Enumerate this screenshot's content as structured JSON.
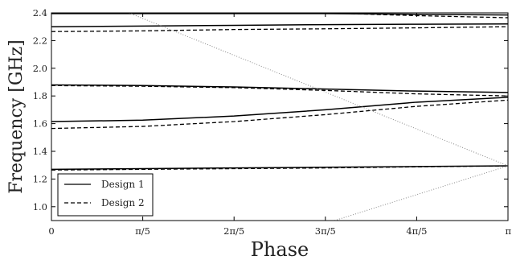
{
  "chart_data": {
    "type": "line",
    "title": "",
    "xlabel": "Phase",
    "ylabel": "Frequency [GHz]",
    "xlim": [
      0,
      1
    ],
    "ylim": [
      0.9,
      2.4
    ],
    "xticks": [
      {
        "value": 0,
        "label": "0"
      },
      {
        "value": 0.2,
        "label": "π/5"
      },
      {
        "value": 0.4,
        "label": "2π/5"
      },
      {
        "value": 0.6,
        "label": "3π/5"
      },
      {
        "value": 0.8,
        "label": "4π/5"
      },
      {
        "value": 1.0,
        "label": "π"
      }
    ],
    "yticks": [
      {
        "value": 1.0,
        "label": "1.0"
      },
      {
        "value": 1.2,
        "label": "1.2"
      },
      {
        "value": 1.4,
        "label": "1.4"
      },
      {
        "value": 1.6,
        "label": "1.6"
      },
      {
        "value": 1.8,
        "label": "1.8"
      },
      {
        "value": 2.0,
        "label": "2.0"
      },
      {
        "value": 2.2,
        "label": "2.2"
      },
      {
        "value": 2.4,
        "label": "2.4"
      }
    ],
    "legend": {
      "position": "lower-left",
      "entries": [
        {
          "label": "Design 1",
          "style": "solid"
        },
        {
          "label": "Design 2",
          "style": "dashed"
        }
      ]
    },
    "series": [
      {
        "name": "Design 1",
        "style": "solid",
        "color": "#000000",
        "x": [
          0,
          0.2,
          0.4,
          0.6,
          0.8,
          1.0
        ],
        "y": [
          1.27,
          1.275,
          1.28,
          1.285,
          1.29,
          1.295
        ]
      },
      {
        "name": "Design 1",
        "style": "solid",
        "color": "#000000",
        "x": [
          0,
          0.2,
          0.4,
          0.6,
          0.8,
          1.0
        ],
        "y": [
          1.615,
          1.625,
          1.655,
          1.7,
          1.755,
          1.79
        ]
      },
      {
        "name": "Design 1",
        "style": "solid",
        "color": "#000000",
        "x": [
          0,
          0.2,
          0.4,
          0.6,
          0.8,
          1.0
        ],
        "y": [
          1.88,
          1.875,
          1.865,
          1.85,
          1.835,
          1.825
        ]
      },
      {
        "name": "Design 1",
        "style": "solid",
        "color": "#000000",
        "x": [
          0,
          0.2,
          0.4,
          0.6,
          0.8,
          1.0
        ],
        "y": [
          2.3,
          2.305,
          2.31,
          2.315,
          2.318,
          2.32
        ]
      },
      {
        "name": "Design 1",
        "style": "solid",
        "color": "#000000",
        "x": [
          0,
          0.2,
          0.4,
          0.6,
          0.8,
          1.0
        ],
        "y": [
          2.395,
          2.395,
          2.395,
          2.395,
          2.39,
          2.385
        ]
      },
      {
        "name": "Design 2",
        "style": "dashed",
        "color": "#000000",
        "x": [
          0,
          0.2,
          0.4,
          0.6,
          0.8,
          1.0
        ],
        "y": [
          1.265,
          1.27,
          1.275,
          1.28,
          1.288,
          1.295
        ]
      },
      {
        "name": "Design 2",
        "style": "dashed",
        "color": "#000000",
        "x": [
          0,
          0.2,
          0.4,
          0.6,
          0.8,
          1.0
        ],
        "y": [
          1.565,
          1.58,
          1.615,
          1.665,
          1.725,
          1.77
        ]
      },
      {
        "name": "Design 2",
        "style": "dashed",
        "color": "#000000",
        "x": [
          0,
          0.2,
          0.4,
          0.6,
          0.8,
          1.0
        ],
        "y": [
          1.875,
          1.87,
          1.86,
          1.84,
          1.815,
          1.8
        ]
      },
      {
        "name": "Design 2",
        "style": "dashed",
        "color": "#000000",
        "x": [
          0,
          0.2,
          0.4,
          0.6,
          0.8,
          1.0
        ],
        "y": [
          2.265,
          2.27,
          2.28,
          2.285,
          2.292,
          2.3
        ]
      },
      {
        "name": "Design 2",
        "style": "dashed",
        "color": "#000000",
        "x": [
          0.6,
          0.8,
          1.0
        ],
        "y": [
          2.4,
          2.38,
          2.365
        ]
      },
      {
        "name": "",
        "style": "dotted",
        "color": "#888888",
        "x": [
          0.17,
          1.0
        ],
        "y": [
          2.4,
          1.295
        ]
      },
      {
        "name": "",
        "style": "dotted",
        "color": "#888888",
        "x": [
          0.62,
          1.0
        ],
        "y": [
          0.9,
          1.295
        ]
      }
    ]
  }
}
